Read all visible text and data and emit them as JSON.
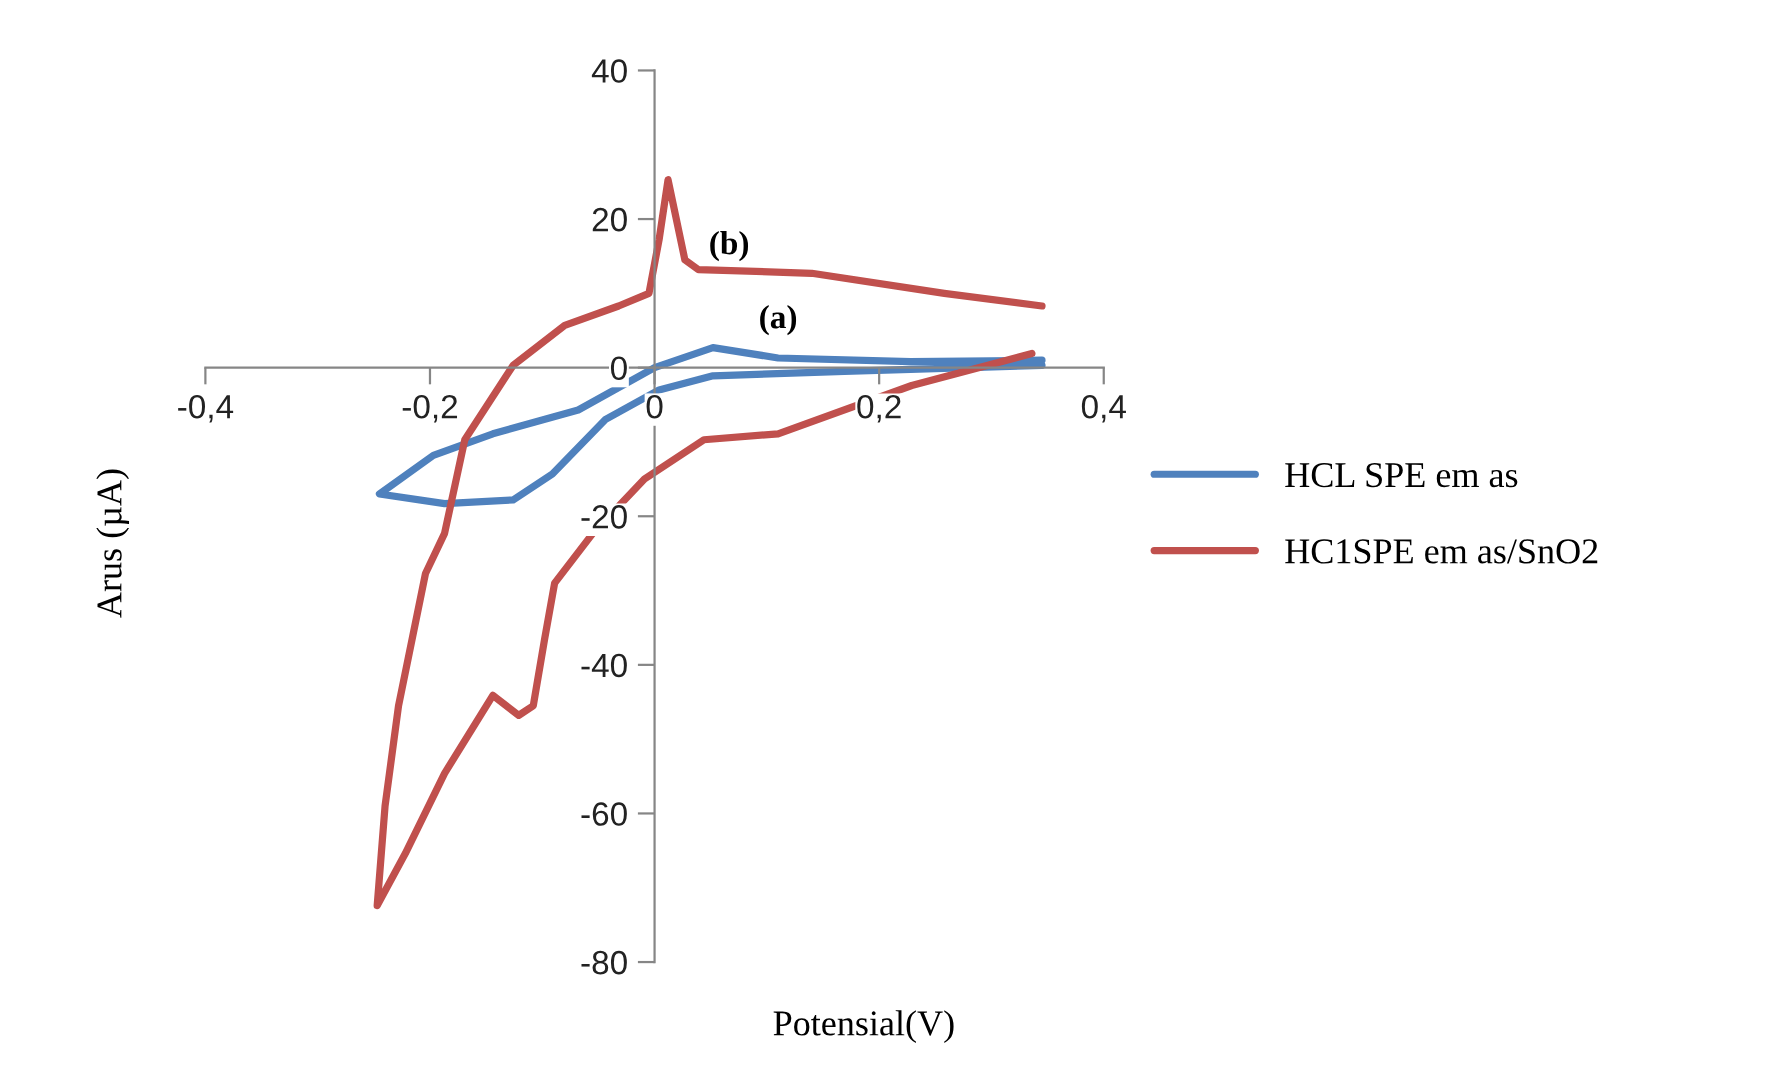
{
  "chart_data": {
    "type": "line",
    "xlabel": "Potensial(V)",
    "ylabel": "Arus (µA)",
    "xlim": [
      -0.4,
      0.4
    ],
    "ylim": [
      -80,
      40
    ],
    "xticks": [
      {
        "value": -0.4,
        "label": "-0,4"
      },
      {
        "value": -0.2,
        "label": "-0,2"
      },
      0,
      {
        "value": 0.2,
        "label": "0,2"
      },
      {
        "value": 0.4,
        "label": "0,4"
      }
    ],
    "yticks": [
      -80,
      -60,
      -40,
      -20,
      0,
      20,
      40
    ],
    "grid": false,
    "legend": "right",
    "marker": "none",
    "line_style": "solid",
    "annotations": [
      "(b)",
      "(a)"
    ],
    "series": [
      {
        "name": "HCL SPE em as",
        "color": "#4f81bd",
        "x": [
          0.345,
          0.228,
          0.11,
          0.052,
          0.0,
          -0.068,
          -0.144,
          -0.197,
          -0.245,
          -0.187,
          -0.126,
          -0.091,
          -0.044,
          0.004,
          0.052,
          0.169,
          0.345
        ],
        "values": [
          1,
          0.8,
          1.3,
          2.7,
          0,
          -5.7,
          -8.9,
          -11.8,
          -17,
          -18.3,
          -17.8,
          -14.3,
          -7,
          -3,
          -1.1,
          -0.5,
          0.3
        ]
      },
      {
        "name": "HC1SPE em as/SnO2",
        "color": "#c0504d",
        "x": [
          0.345,
          0.258,
          0.14,
          0.039,
          0.027,
          0.012,
          0.004,
          -0.005,
          -0.032,
          -0.08,
          -0.126,
          -0.169,
          -0.187,
          -0.204,
          -0.228,
          -0.24,
          -0.247,
          -0.222,
          -0.187,
          -0.144,
          -0.121,
          -0.108,
          -0.098,
          -0.089,
          -0.055,
          -0.009,
          0.044,
          0.11,
          0.229,
          0.336
        ],
        "values": [
          8.3,
          10,
          12.7,
          13.2,
          14.5,
          25.3,
          17.2,
          10,
          8.3,
          5.7,
          0.3,
          -9.7,
          -22.3,
          -27.7,
          -45.5,
          -59,
          -72.4,
          -65.4,
          -54.6,
          -44.1,
          -46.8,
          -45.5,
          -36.6,
          -29,
          -22.3,
          -15,
          -9.7,
          -8.9,
          -2.4,
          1.9
        ]
      }
    ]
  }
}
